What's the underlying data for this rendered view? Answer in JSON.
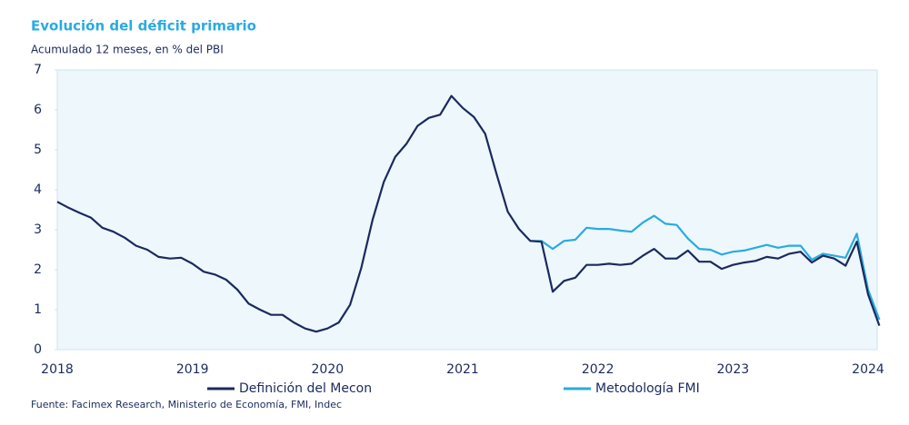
{
  "chart_data": {
    "type": "line",
    "title": "Evolución del déficit primario",
    "subtitle": "Acumulado 12 meses, en % del PBI",
    "source": "Fuente: Facimex Research, Ministerio de Economía, FMI, Indec",
    "categories": [
      "2018",
      null,
      null,
      null,
      null,
      null,
      null,
      null,
      null,
      null,
      null,
      null,
      "2019",
      null,
      null,
      null,
      null,
      null,
      null,
      null,
      null,
      null,
      null,
      null,
      "2020",
      null,
      null,
      null,
      null,
      null,
      null,
      null,
      null,
      null,
      null,
      null,
      "2021",
      null,
      null,
      null,
      null,
      null,
      null,
      null,
      null,
      null,
      null,
      null,
      "2022",
      null,
      null,
      null,
      null,
      null,
      null,
      null,
      null,
      null,
      null,
      null,
      "2023",
      null,
      null,
      null,
      null,
      null,
      null,
      null,
      null,
      null,
      null,
      null,
      "2024",
      null
    ],
    "series": [
      {
        "name": "Definición del Mecon",
        "color": "#1b2a5e",
        "values": [
          3.7,
          3.55,
          3.42,
          3.3,
          3.05,
          2.95,
          2.8,
          2.6,
          2.5,
          2.32,
          2.28,
          2.3,
          2.15,
          1.95,
          1.88,
          1.75,
          1.5,
          1.15,
          1.0,
          0.87,
          0.87,
          0.68,
          0.53,
          0.45,
          0.53,
          0.68,
          1.12,
          2.05,
          3.25,
          4.2,
          4.82,
          5.15,
          5.6,
          5.8,
          5.88,
          6.35,
          6.05,
          5.82,
          5.4,
          4.4,
          3.45,
          3.02,
          2.72,
          2.7,
          1.45,
          1.72,
          1.8,
          2.12,
          2.12,
          2.15,
          2.12,
          2.15,
          2.35,
          2.52,
          2.28,
          2.28,
          2.48,
          2.2,
          2.2,
          2.02,
          2.12,
          2.18,
          2.22,
          2.32,
          2.28,
          2.4,
          2.45,
          2.18,
          2.35,
          2.28,
          2.1,
          2.7,
          1.38,
          0.6
        ]
      },
      {
        "name": "Metodología FMI",
        "color": "#29abe2",
        "values": [
          null,
          null,
          null,
          null,
          null,
          null,
          null,
          null,
          null,
          null,
          null,
          null,
          null,
          null,
          null,
          null,
          null,
          null,
          null,
          null,
          null,
          null,
          null,
          null,
          null,
          null,
          null,
          null,
          null,
          null,
          null,
          null,
          null,
          null,
          null,
          null,
          null,
          null,
          null,
          null,
          null,
          null,
          2.72,
          2.72,
          2.52,
          2.72,
          2.75,
          3.05,
          3.02,
          3.02,
          2.98,
          2.95,
          3.18,
          3.35,
          3.15,
          3.12,
          2.78,
          2.52,
          2.5,
          2.38,
          2.45,
          2.48,
          2.55,
          2.62,
          2.55,
          2.6,
          2.6,
          2.25,
          2.4,
          2.35,
          2.3,
          2.9,
          1.5,
          0.75
        ]
      }
    ],
    "ylim": [
      0,
      7
    ],
    "yticks": [
      0,
      1,
      2,
      3,
      4,
      5,
      6,
      7
    ]
  }
}
